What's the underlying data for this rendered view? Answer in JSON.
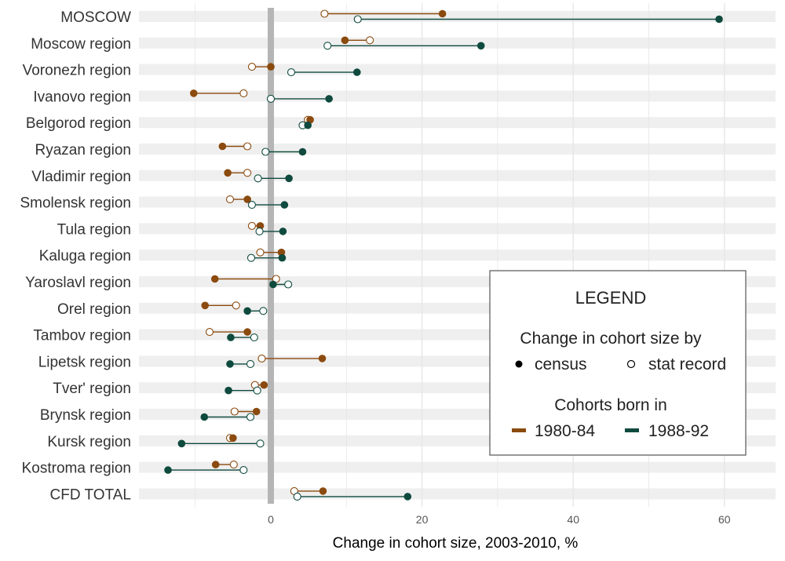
{
  "chart_data": {
    "type": "dumbbell",
    "xlabel": "Change in cohort size, 2003-2010, %",
    "xlim": [
      -17.5,
      67
    ],
    "xticks": [
      0,
      20,
      40,
      60
    ],
    "xtick_labels": [
      "0",
      "20",
      "40",
      "60"
    ],
    "grid": true,
    "categories": [
      "MOSCOW",
      "Moscow region",
      "Voronezh region",
      "Ivanovo region",
      "Belgorod region",
      "Ryazan region",
      "Vladimir region",
      "Smolensk region",
      "Tula region",
      "Kaluga region",
      "Yaroslavl region",
      "Orel region",
      "Tambov region",
      "Lipetsk region",
      "Tver' region",
      "Brynsk region",
      "Kursk region",
      "Kostroma region",
      "CFD TOTAL"
    ],
    "series": [
      {
        "name": "1980-84",
        "color": "#8B4A0E",
        "census": [
          22.7,
          9.8,
          0.0,
          -10.2,
          5.2,
          -6.4,
          -5.7,
          -3.1,
          -1.4,
          1.4,
          -7.4,
          -8.7,
          -3.1,
          6.8,
          -0.9,
          -1.9,
          -5.0,
          -7.3,
          6.9
        ],
        "stat_record": [
          7.1,
          13.1,
          -2.5,
          -3.6,
          4.9,
          -3.1,
          -3.1,
          -5.4,
          -2.5,
          -1.4,
          0.7,
          -4.6,
          -8.1,
          -1.2,
          -2.1,
          -4.8,
          -5.4,
          -4.9,
          3.1
        ]
      },
      {
        "name": "1988-92",
        "color": "#0F4A3E",
        "census": [
          59.3,
          27.8,
          11.4,
          7.7,
          4.9,
          4.2,
          2.4,
          1.8,
          1.6,
          1.5,
          0.3,
          -3.1,
          -5.3,
          -5.4,
          -5.6,
          -8.8,
          -11.8,
          -13.6,
          18.1
        ],
        "stat_record": [
          11.5,
          7.5,
          2.7,
          0.0,
          4.2,
          -0.7,
          -1.7,
          -2.5,
          -1.5,
          -2.6,
          2.3,
          -1.0,
          -2.2,
          -2.7,
          -1.8,
          -2.7,
          -1.4,
          -3.6,
          3.5
        ]
      }
    ],
    "legend": {
      "position": "bottom-right",
      "title": "LEGEND",
      "subtitle_measure": "Change in cohort size by",
      "measure_items": [
        "census",
        "stat record"
      ],
      "subtitle_cohort": "Cohorts born in",
      "cohort_items": [
        "1980-84",
        "1988-92"
      ]
    }
  }
}
